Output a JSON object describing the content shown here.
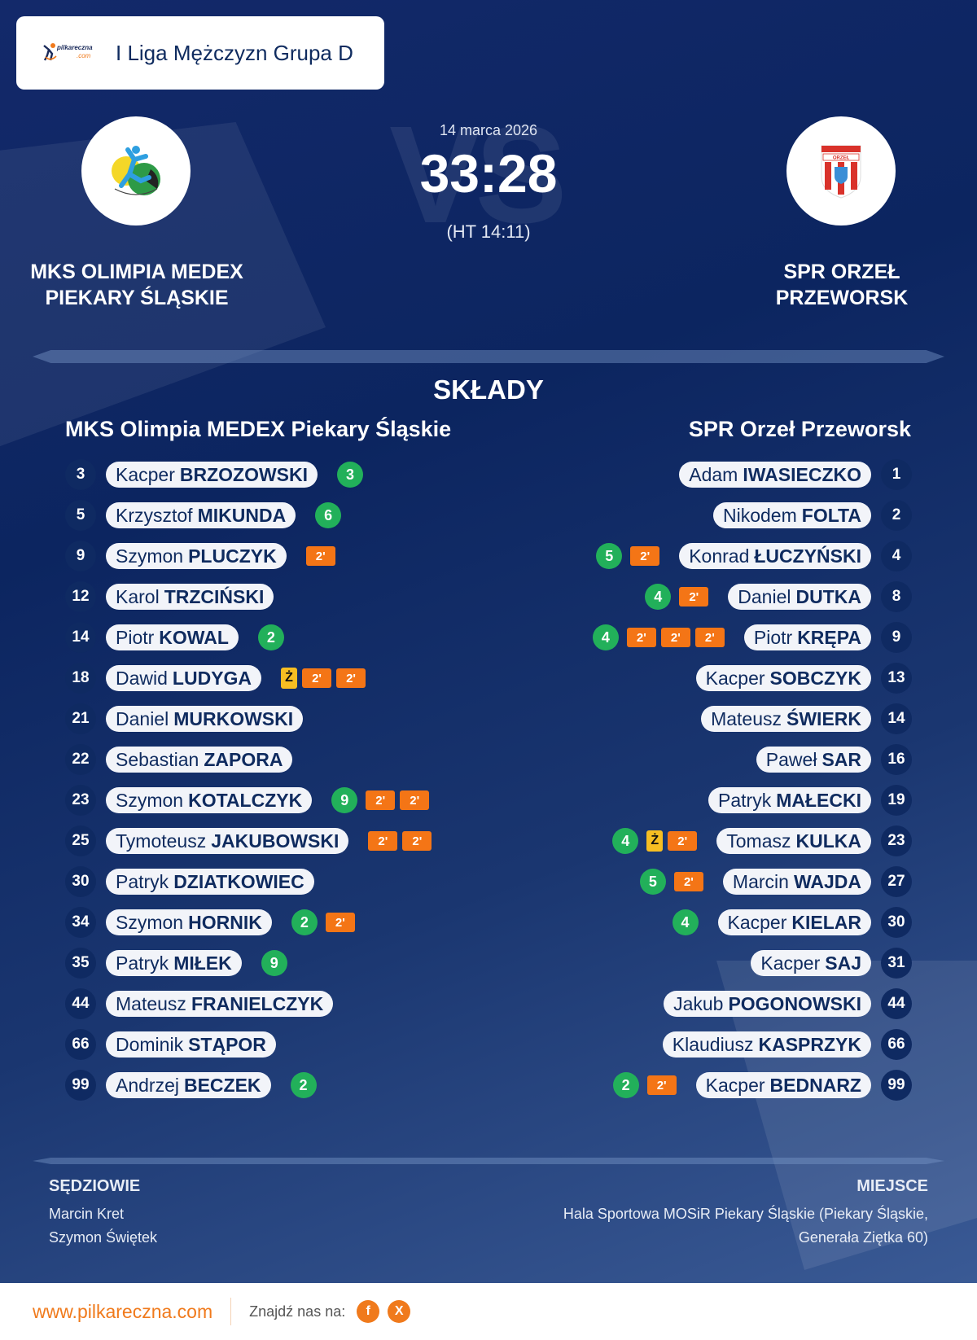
{
  "header": {
    "logo": {
      "name": "pilkareczna",
      "suffix": ".com"
    },
    "league": "I Liga Mężczyzn Grupa D"
  },
  "match": {
    "date": "14 marca 2026",
    "score": "33:28",
    "halftime": "(HT 14:11)",
    "vs_watermark": "VS",
    "home_team": {
      "name_line1": "MKS OLIMPIA MEDEX",
      "name_line2": "PIEKARY ŚLĄSKIE",
      "logo_icon": "mks-olimpia-crest"
    },
    "away_team": {
      "name_line1": "SPR ORZEŁ",
      "name_line2": "PRZEWORSK",
      "logo_icon": "spr-orzel-crest"
    }
  },
  "lineups": {
    "title": "SKŁADY",
    "home": {
      "team": "MKS Olimpia MEDEX Piekary Śląskie",
      "players": [
        {
          "number": "3",
          "first": "Kacper",
          "last": "BRZOZOWSKI",
          "goals": "3",
          "yellow": false,
          "suspensions": 0
        },
        {
          "number": "5",
          "first": "Krzysztof",
          "last": "MIKUNDA",
          "goals": "6",
          "yellow": false,
          "suspensions": 0
        },
        {
          "number": "9",
          "first": "Szymon",
          "last": "PLUCZYK",
          "goals": "",
          "yellow": false,
          "suspensions": 1
        },
        {
          "number": "12",
          "first": "Karol",
          "last": "TRZCIŃSKI",
          "goals": "",
          "yellow": false,
          "suspensions": 0
        },
        {
          "number": "14",
          "first": "Piotr",
          "last": "KOWAL",
          "goals": "2",
          "yellow": false,
          "suspensions": 0
        },
        {
          "number": "18",
          "first": "Dawid",
          "last": "LUDYGA",
          "goals": "",
          "yellow": true,
          "suspensions": 2
        },
        {
          "number": "21",
          "first": "Daniel",
          "last": "MURKOWSKI",
          "goals": "",
          "yellow": false,
          "suspensions": 0
        },
        {
          "number": "22",
          "first": "Sebastian",
          "last": "ZAPORA",
          "goals": "",
          "yellow": false,
          "suspensions": 0
        },
        {
          "number": "23",
          "first": "Szymon",
          "last": "KOTALCZYK",
          "goals": "9",
          "yellow": false,
          "suspensions": 2
        },
        {
          "number": "25",
          "first": "Tymoteusz",
          "last": "JAKUBOWSKI",
          "goals": "",
          "yellow": false,
          "suspensions": 2
        },
        {
          "number": "30",
          "first": "Patryk",
          "last": "DZIATKOWIEC",
          "goals": "",
          "yellow": false,
          "suspensions": 0
        },
        {
          "number": "34",
          "first": "Szymon",
          "last": "HORNIK",
          "goals": "2",
          "yellow": false,
          "suspensions": 1
        },
        {
          "number": "35",
          "first": "Patryk",
          "last": "MIŁEK",
          "goals": "9",
          "yellow": false,
          "suspensions": 0
        },
        {
          "number": "44",
          "first": "Mateusz",
          "last": "FRANIELCZYK",
          "goals": "",
          "yellow": false,
          "suspensions": 0
        },
        {
          "number": "66",
          "first": "Dominik",
          "last": "STĄPOR",
          "goals": "",
          "yellow": false,
          "suspensions": 0
        },
        {
          "number": "99",
          "first": "Andrzej",
          "last": "BECZEK",
          "goals": "2",
          "yellow": false,
          "suspensions": 0
        }
      ]
    },
    "away": {
      "team": "SPR Orzeł Przeworsk",
      "players": [
        {
          "number": "1",
          "first": "Adam",
          "last": "IWASIECZKO",
          "goals": "",
          "yellow": false,
          "suspensions": 0
        },
        {
          "number": "2",
          "first": "Nikodem",
          "last": "FOLTA",
          "goals": "",
          "yellow": false,
          "suspensions": 0
        },
        {
          "number": "4",
          "first": "Konrad",
          "last": "ŁUCZYŃSKI",
          "goals": "5",
          "yellow": false,
          "suspensions": 1
        },
        {
          "number": "8",
          "first": "Daniel",
          "last": "DUTKA",
          "goals": "4",
          "yellow": false,
          "suspensions": 1
        },
        {
          "number": "9",
          "first": "Piotr",
          "last": "KRĘPA",
          "goals": "4",
          "yellow": false,
          "suspensions": 3
        },
        {
          "number": "13",
          "first": "Kacper",
          "last": "SOBCZYK",
          "goals": "",
          "yellow": false,
          "suspensions": 0
        },
        {
          "number": "14",
          "first": "Mateusz",
          "last": "ŚWIERK",
          "goals": "",
          "yellow": false,
          "suspensions": 0
        },
        {
          "number": "16",
          "first": "Paweł",
          "last": "SAR",
          "goals": "",
          "yellow": false,
          "suspensions": 0
        },
        {
          "number": "19",
          "first": "Patryk",
          "last": "MAŁECKI",
          "goals": "",
          "yellow": false,
          "suspensions": 0
        },
        {
          "number": "23",
          "first": "Tomasz",
          "last": "KULKA",
          "goals": "4",
          "yellow": true,
          "suspensions": 1
        },
        {
          "number": "27",
          "first": "Marcin",
          "last": "WAJDA",
          "goals": "5",
          "yellow": false,
          "suspensions": 1
        },
        {
          "number": "30",
          "first": "Kacper",
          "last": "KIELAR",
          "goals": "4",
          "yellow": false,
          "suspensions": 0
        },
        {
          "number": "31",
          "first": "Kacper",
          "last": "SAJ",
          "goals": "",
          "yellow": false,
          "suspensions": 0
        },
        {
          "number": "44",
          "first": "Jakub",
          "last": "POGONOWSKI",
          "goals": "",
          "yellow": false,
          "suspensions": 0
        },
        {
          "number": "66",
          "first": "Klaudiusz",
          "last": "KASPRZYK",
          "goals": "",
          "yellow": false,
          "suspensions": 0
        },
        {
          "number": "99",
          "first": "Kacper",
          "last": "BEDNARZ",
          "goals": "2",
          "yellow": false,
          "suspensions": 1
        }
      ]
    },
    "labels": {
      "suspension": "2'",
      "yellow_card": "Ż"
    }
  },
  "officials": {
    "label": "SĘDZIOWIE",
    "names": [
      "Marcin Kret",
      "Szymon Świętek"
    ]
  },
  "venue": {
    "label": "MIEJSCE",
    "line1": "Hala Sportowa MOSiR Piekary Śląskie (Piekary Śląskie,",
    "line2": "Generała Ziętka 60)"
  },
  "footer": {
    "website": "www.pilkareczna.com",
    "find_us": "Znajdź nas na:",
    "social": [
      {
        "icon": "facebook-icon",
        "glyph": "f"
      },
      {
        "icon": "x-icon",
        "glyph": "X"
      }
    ]
  },
  "colors": {
    "background": "#0c2560",
    "goals": "#22b05a",
    "suspension": "#f47516",
    "yellow_card": "#f7be22",
    "brand_orange": "#f07a1c",
    "pill_text": "#0f2b5f"
  }
}
